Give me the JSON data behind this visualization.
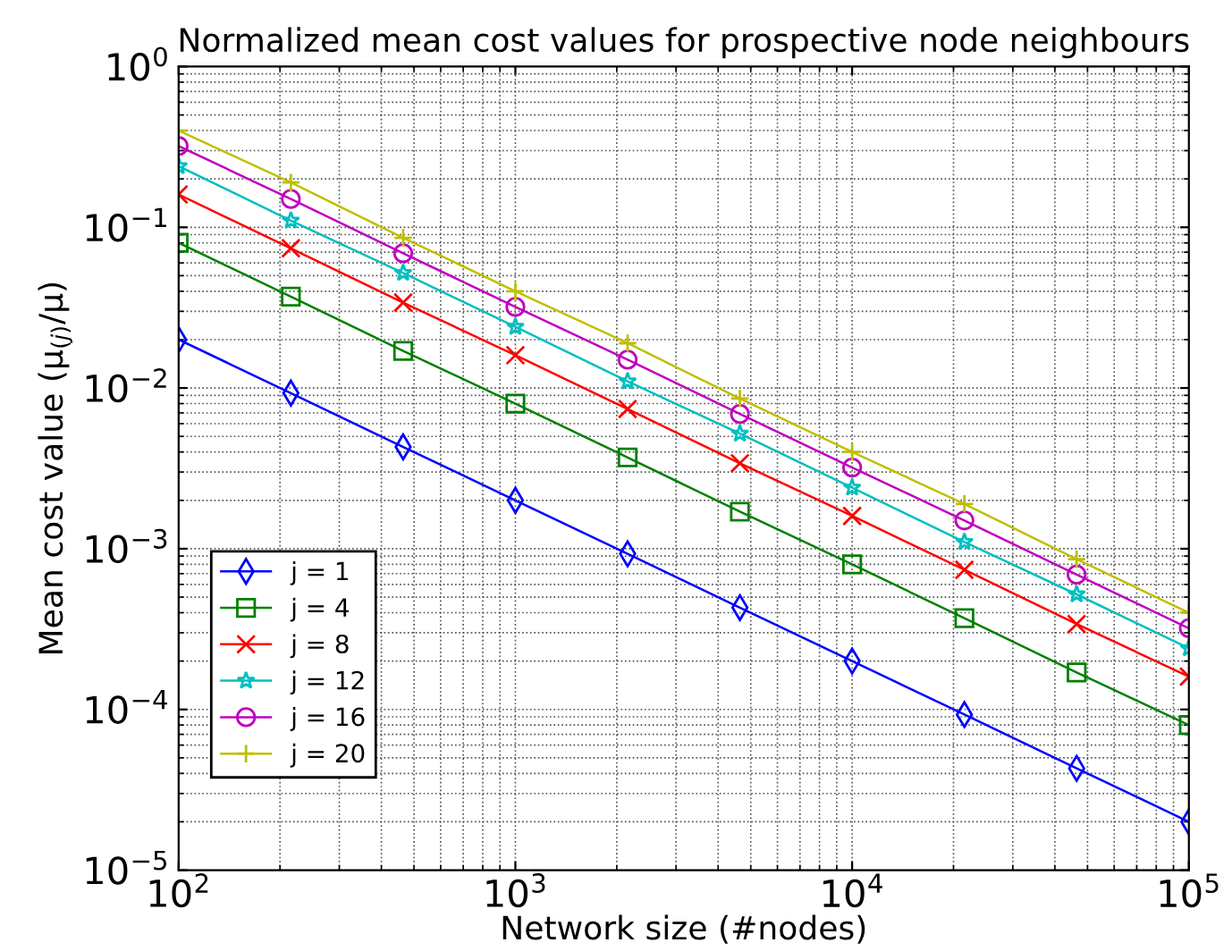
{
  "chart_data": {
    "type": "line",
    "title": "Normalized mean cost values for prospective node neighbours",
    "xlabel": "Network size (#nodes)",
    "ylabel": "Mean cost value (μ$_{(j)}$/μ)",
    "x": [
      100,
      215.4,
      464.2,
      1000,
      2154,
      4642,
      10000,
      21544,
      46416,
      100000
    ],
    "series": [
      {
        "name": "j = 1",
        "color": "#0000ff",
        "marker": "diamond",
        "values": [
          0.02,
          0.0093,
          0.0043,
          0.002,
          0.00093,
          0.00043,
          0.0002,
          9.3e-05,
          4.3e-05,
          2e-05
        ]
      },
      {
        "name": "j = 4",
        "color": "#008000",
        "marker": "square",
        "values": [
          0.08,
          0.037,
          0.017,
          0.008,
          0.0037,
          0.0017,
          0.0008,
          0.00037,
          0.00017,
          8e-05
        ]
      },
      {
        "name": "j = 8",
        "color": "#ff0000",
        "marker": "cross",
        "values": [
          0.16,
          0.074,
          0.034,
          0.016,
          0.0074,
          0.0034,
          0.0016,
          0.00074,
          0.00034,
          0.00016
        ]
      },
      {
        "name": "j = 12",
        "color": "#00bfbf",
        "marker": "star",
        "values": [
          0.24,
          0.11,
          0.052,
          0.024,
          0.011,
          0.0052,
          0.0024,
          0.0011,
          0.00052,
          0.00024
        ]
      },
      {
        "name": "j = 16",
        "color": "#bf00bf",
        "marker": "circle",
        "values": [
          0.32,
          0.15,
          0.069,
          0.032,
          0.015,
          0.0069,
          0.0032,
          0.0015,
          0.00069,
          0.00032
        ]
      },
      {
        "name": "j = 20",
        "color": "#bfbf00",
        "marker": "plus",
        "values": [
          0.4,
          0.19,
          0.086,
          0.04,
          0.019,
          0.0086,
          0.004,
          0.0019,
          0.00086,
          0.0004
        ]
      }
    ],
    "log": "xy",
    "xlim": [
      100,
      100000
    ],
    "ylim": [
      1e-05,
      1
    ],
    "xticks": [
      {
        "value": 100,
        "label": "10$^{2}$"
      },
      {
        "value": 1000,
        "label": "10$^{3}$"
      },
      {
        "value": 10000,
        "label": "10$^{4}$"
      },
      {
        "value": 100000,
        "label": "10$^{5}$"
      }
    ],
    "yticks": [
      {
        "value": 1e-05,
        "label": "10$^{−5}$"
      },
      {
        "value": 0.0001,
        "label": "10$^{−4}$"
      },
      {
        "value": 0.001,
        "label": "10$^{−3}$"
      },
      {
        "value": 0.01,
        "label": "10$^{−2}$"
      },
      {
        "value": 0.1,
        "label": "10$^{−1}$"
      },
      {
        "value": 1,
        "label": "10$^{0}$"
      }
    ],
    "grid": true,
    "legend": "bottom left",
    "line_style": "solid"
  }
}
